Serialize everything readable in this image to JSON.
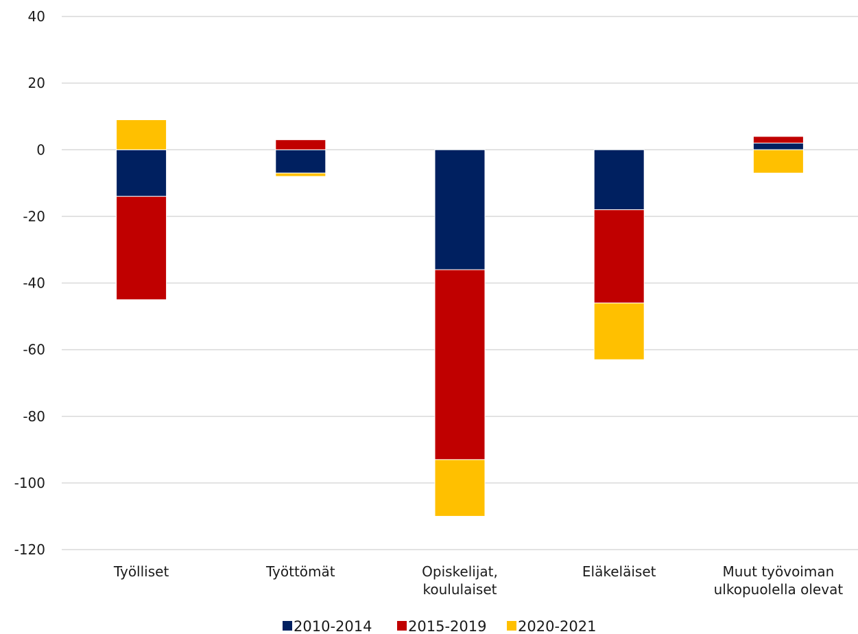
{
  "chart_data": {
    "type": "bar",
    "stacked": true,
    "categories": [
      "Työlliset",
      "Työttömät",
      "Opiskelijat, koululaiset",
      "Eläkeläiset",
      "Muut työvoiman ulkopuolella olevat"
    ],
    "category_lines": [
      [
        "Työlliset"
      ],
      [
        "Työttömät"
      ],
      [
        "Opiskelijat,",
        "koululaiset"
      ],
      [
        "Eläkeläiset"
      ],
      [
        "Muut työvoiman",
        "ulkopuolella olevat"
      ]
    ],
    "series": [
      {
        "name": "2010-2014",
        "color": "#002060",
        "values": [
          -14,
          -7,
          -36,
          -18,
          2
        ]
      },
      {
        "name": "2015-2019",
        "color": "#c00000",
        "values": [
          -31,
          3,
          -57,
          -28,
          2
        ]
      },
      {
        "name": "2020-2021",
        "color": "#ffc000",
        "values": [
          9,
          -1,
          -17,
          -17,
          -7
        ]
      }
    ],
    "ylim": [
      -120,
      40
    ],
    "yticks": [
      40,
      20,
      0,
      -20,
      -40,
      -60,
      -80,
      -100,
      -120
    ],
    "grid": true,
    "legend_position": "bottom"
  }
}
